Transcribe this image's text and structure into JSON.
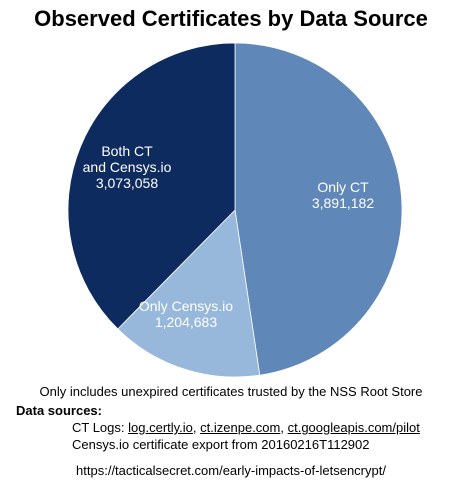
{
  "title": "Observed Certificates by Data Source",
  "chart_data": {
    "type": "pie",
    "title": "Observed Certificates by Data Source",
    "slices": [
      {
        "label_lines": [
          "Only CT",
          "3,891,182"
        ],
        "category": "Only CT",
        "value": 3891182,
        "color": "#5f87b8"
      },
      {
        "label_lines": [
          "Only Censys.io",
          "1,204,683"
        ],
        "category": "Only Censys.io",
        "value": 1204683,
        "color": "#97b8db"
      },
      {
        "label_lines": [
          "Both CT",
          "and Censys.io",
          "3,073,058"
        ],
        "category": "Both CT and Censys.io",
        "value": 3073058,
        "color": "#0d2b5e"
      }
    ]
  },
  "note": "Only includes unexpired certificates trusted by the NSS Root Store",
  "sources": {
    "heading": "Data sources:",
    "ct_prefix": "CT Logs: ",
    "ct_links": [
      "log.certly.io",
      "ct.izenpe.com",
      "ct.googleapis.com/pilot"
    ],
    "separator": ", ",
    "censys": "Censys.io certificate export from 20160216T112902"
  },
  "footer_url": "https://tacticalsecret.com/early-impacts-of-letsencrypt/"
}
